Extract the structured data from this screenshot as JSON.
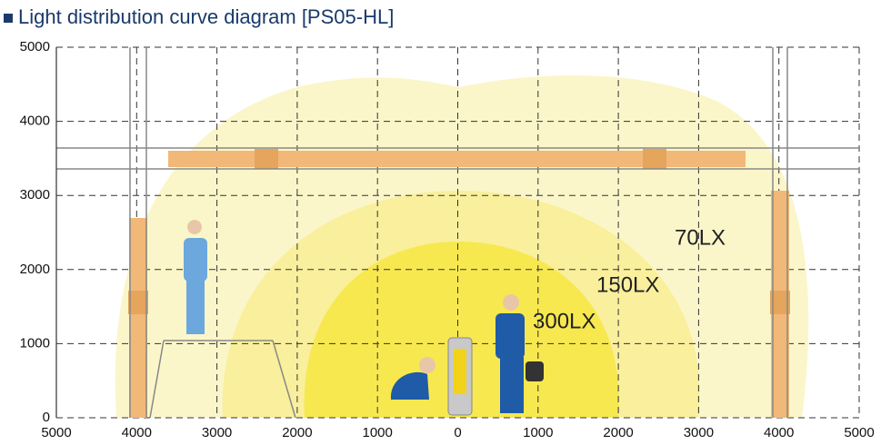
{
  "chart_data": {
    "type": "isolux",
    "title": "Light distribution curve diagram [PS05-HL]",
    "xlim": [
      -5000,
      5000
    ],
    "ylim": [
      0,
      5000
    ],
    "xticks": [
      {
        "value": -5000,
        "label": "5000"
      },
      {
        "value": -4000,
        "label": "4000"
      },
      {
        "value": -3000,
        "label": "3000"
      },
      {
        "value": -2000,
        "label": "2000"
      },
      {
        "value": -1000,
        "label": "1000"
      },
      0,
      1000,
      2000,
      3000,
      4000,
      5000
    ],
    "yticks": [
      0,
      1000,
      2000,
      3000,
      4000,
      5000
    ],
    "grid": true,
    "annotations": [
      "70LX",
      "150LX",
      "300LX"
    ]
  }
}
